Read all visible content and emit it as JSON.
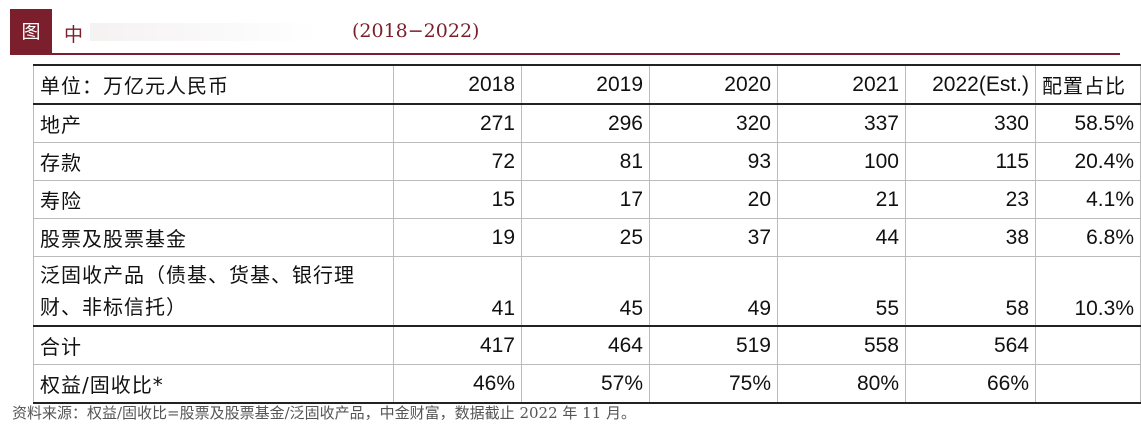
{
  "header": {
    "badge": "图",
    "title": "中",
    "years": "(2018−2022)"
  },
  "table": {
    "columns": [
      "单位：万亿元人民币",
      "2018",
      "2019",
      "2020",
      "2021",
      "2022(Est.)",
      "配置占比"
    ],
    "rows": [
      {
        "label": "地产",
        "values": [
          "271",
          "296",
          "320",
          "337",
          "330",
          "58.5%"
        ]
      },
      {
        "label": "存款",
        "values": [
          "72",
          "81",
          "93",
          "100",
          "115",
          "20.4%"
        ]
      },
      {
        "label": "寿险",
        "values": [
          "15",
          "17",
          "20",
          "21",
          "23",
          "4.1%"
        ]
      },
      {
        "label": "股票及股票基金",
        "values": [
          "19",
          "25",
          "37",
          "44",
          "38",
          "6.8%"
        ]
      },
      {
        "label": "泛固收产品（债基、货基、银行理财、非标信托）",
        "values": [
          "41",
          "45",
          "49",
          "55",
          "58",
          "10.3%"
        ]
      },
      {
        "label": "合计",
        "values": [
          "417",
          "464",
          "519",
          "558",
          "564",
          ""
        ]
      },
      {
        "label": "权益/固收比*",
        "values": [
          "46%",
          "57%",
          "75%",
          "80%",
          "66%",
          ""
        ]
      }
    ]
  },
  "source": "资料来源：权益/固收比=股票及股票基金/泛固收产品，中金财富，数据截止 2022 年 11 月。"
}
